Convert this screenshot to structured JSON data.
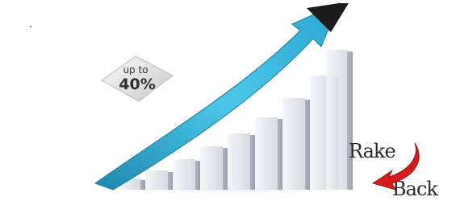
{
  "badge": {
    "line1": "up to",
    "line2": "40%"
  },
  "logo": {
    "word1": "Rake",
    "word2": "Back"
  }
}
